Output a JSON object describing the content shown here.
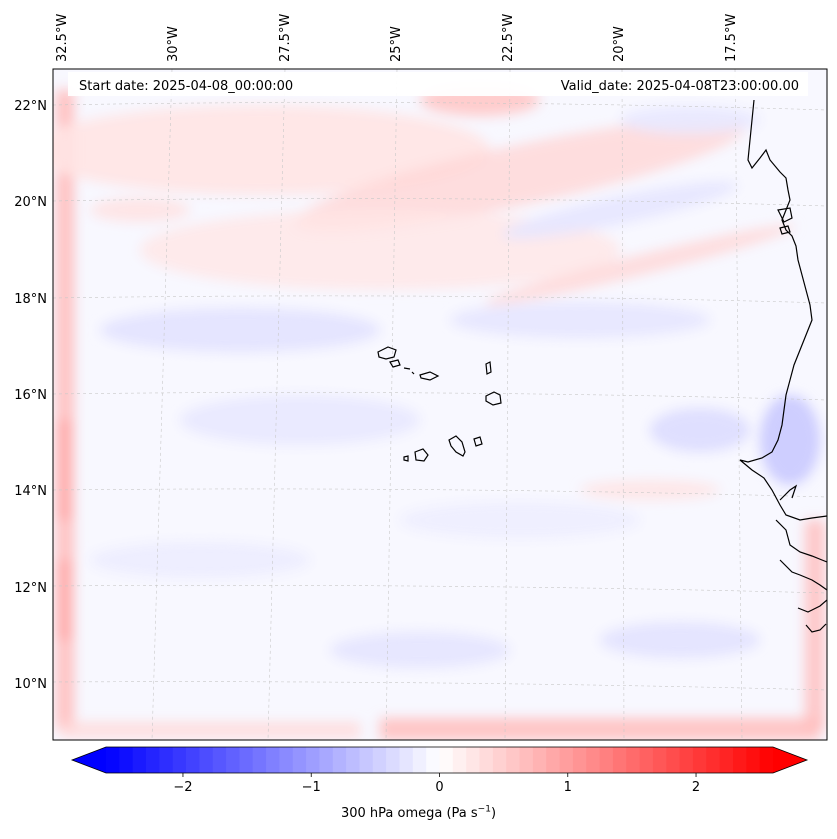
{
  "map": {
    "start_date_text": "Start date: 2025-04-08_00:00:00",
    "valid_date_text": "Valid_date: 2025-04-08T23:00:00.00",
    "lon_labels": [
      "32.5°W",
      "30°W",
      "27.5°W",
      "25°W",
      "22.5°W",
      "20°W",
      "17.5°W"
    ],
    "lat_labels": [
      "22°N",
      "20°N",
      "18°N",
      "16°N",
      "14°N",
      "12°N",
      "10°N"
    ]
  },
  "colorbar": {
    "ticks": [
      "−2",
      "−1",
      "0",
      "1",
      "2"
    ],
    "tick_values": [
      -2,
      -1,
      0,
      1,
      2
    ],
    "vmin": -2.6,
    "vmax": 2.6,
    "label_main": "300 hPa omega (Pa s",
    "label_exp": "−1",
    "label_close": ")",
    "colors": {
      "low": "#0000ff",
      "mid": "#ffffff",
      "high": "#ff0000"
    }
  }
}
